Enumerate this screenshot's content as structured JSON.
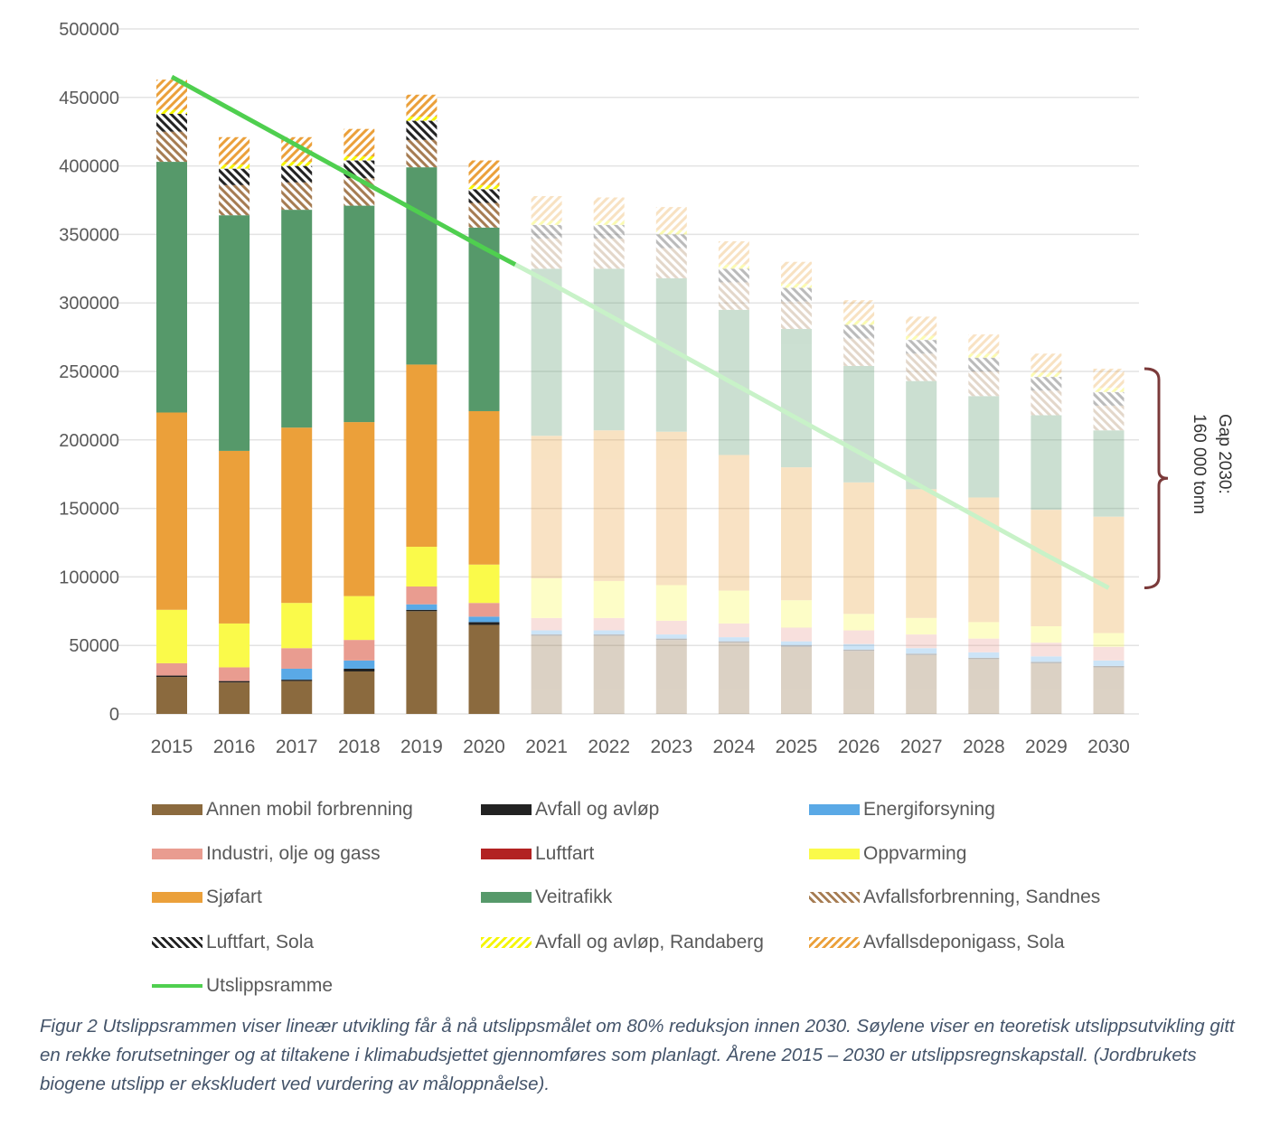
{
  "chart_data": {
    "type": "bar",
    "stacked": true,
    "categories": [
      "2015",
      "2016",
      "2017",
      "2018",
      "2019",
      "2020",
      "2021",
      "2022",
      "2023",
      "2024",
      "2025",
      "2026",
      "2027",
      "2028",
      "2029",
      "2030"
    ],
    "ylim": [
      0,
      500000
    ],
    "yticks": [
      0,
      50000,
      100000,
      150000,
      200000,
      250000,
      300000,
      350000,
      400000,
      450000,
      500000
    ],
    "grid": true,
    "projected_from": "2021",
    "series": [
      {
        "name": "Annen mobil forbrenning",
        "color": "#8b6a3e",
        "pattern": "solid",
        "values": [
          27000,
          23000,
          24000,
          31000,
          75000,
          65000,
          57000,
          57000,
          54000,
          52000,
          49000,
          46000,
          43000,
          40000,
          37000,
          34000
        ]
      },
      {
        "name": "Avfall og avløp",
        "color": "#222222",
        "pattern": "solid",
        "values": [
          1000,
          1000,
          1000,
          2000,
          1000,
          2000,
          1000,
          1000,
          1000,
          1000,
          1000,
          1000,
          1000,
          1000,
          1000,
          1000
        ]
      },
      {
        "name": "Energiforsyning",
        "color": "#5aa9e6",
        "pattern": "solid",
        "values": [
          0,
          0,
          8000,
          6000,
          4000,
          4000,
          3000,
          3000,
          3000,
          3000,
          3000,
          4000,
          4000,
          4000,
          4000,
          4000
        ]
      },
      {
        "name": "Industri, olje og gass",
        "color": "#e99c90",
        "pattern": "solid",
        "values": [
          9000,
          10000,
          15000,
          15000,
          13000,
          10000,
          9000,
          9000,
          10000,
          10000,
          10000,
          10000,
          10000,
          10000,
          10000,
          10000
        ]
      },
      {
        "name": "Luftfart",
        "color": "#b22222",
        "pattern": "solid",
        "values": [
          0,
          0,
          0,
          0,
          0,
          0,
          0,
          0,
          0,
          0,
          0,
          0,
          0,
          0,
          0,
          0
        ]
      },
      {
        "name": "Oppvarming",
        "color": "#fafa4a",
        "pattern": "solid",
        "values": [
          39000,
          32000,
          33000,
          32000,
          29000,
          28000,
          29000,
          27000,
          26000,
          24000,
          20000,
          12000,
          12000,
          12000,
          12000,
          10000
        ]
      },
      {
        "name": "Sjøfart",
        "color": "#eba03a",
        "pattern": "solid",
        "values": [
          144000,
          126000,
          128000,
          127000,
          133000,
          112000,
          104000,
          110000,
          112000,
          99000,
          97000,
          96000,
          94000,
          91000,
          85000,
          85000
        ]
      },
      {
        "name": "Veitrafikk",
        "color": "#56996a",
        "pattern": "solid",
        "values": [
          183000,
          172000,
          159000,
          158000,
          144000,
          134000,
          122000,
          118000,
          112000,
          106000,
          101000,
          85000,
          79000,
          74000,
          69000,
          63000
        ]
      },
      {
        "name": "Avfallsforbrenning, Sandnes",
        "color": "#a67c52",
        "pattern": "hatch-down",
        "values": [
          22000,
          22000,
          20000,
          20000,
          20000,
          18000,
          22000,
          22000,
          22000,
          20000,
          20000,
          20000,
          20000,
          18000,
          18000,
          18000
        ]
      },
      {
        "name": "Luftfart, Sola",
        "color": "#222222",
        "pattern": "hatch-down",
        "values": [
          13000,
          12000,
          12000,
          13000,
          14000,
          10000,
          10000,
          10000,
          10000,
          10000,
          10000,
          10000,
          10000,
          10000,
          10000,
          10000
        ]
      },
      {
        "name": "Avfall og avløp, Randaberg",
        "color": "#f5f500",
        "pattern": "hatch-up",
        "values": [
          3000,
          3000,
          3000,
          3000,
          3000,
          3000,
          3000,
          3000,
          3000,
          3000,
          3000,
          3000,
          3000,
          3000,
          3000,
          3000
        ]
      },
      {
        "name": "Avfallsdeponigass, Sola",
        "color": "#eba03a",
        "pattern": "hatch-up",
        "values": [
          22000,
          20000,
          18000,
          20000,
          16000,
          18000,
          18000,
          17000,
          17000,
          17000,
          16000,
          15000,
          14000,
          14000,
          14000,
          14000
        ]
      }
    ],
    "line": {
      "name": "Utslippsramme",
      "color": "#4fcf4f",
      "values": [
        465000,
        440000,
        415000,
        390000,
        365000,
        340000,
        316000,
        291000,
        266000,
        241000,
        216000,
        191000,
        166000,
        141000,
        116000,
        92000
      ]
    },
    "annotation": {
      "text_line1": "Gap 2030:",
      "text_line2": "160 000 tonn",
      "from": 252000,
      "to": 92000,
      "color": "#7b3a3a"
    }
  },
  "caption": "Figur 2 Utslippsrammen viser lineær utvikling får å nå utslippsmålet om 80% reduksjon innen 2030. Søylene viser en teoretisk utslippsutvikling gitt en rekke forutsetninger og at tiltakene i klimabudsjettet gjennomføres som planlagt. Årene 2015 – 2030 er utslippsregnskapstall. (Jordbrukets biogene utslipp er ekskludert ved vurdering av måloppnåelse)."
}
